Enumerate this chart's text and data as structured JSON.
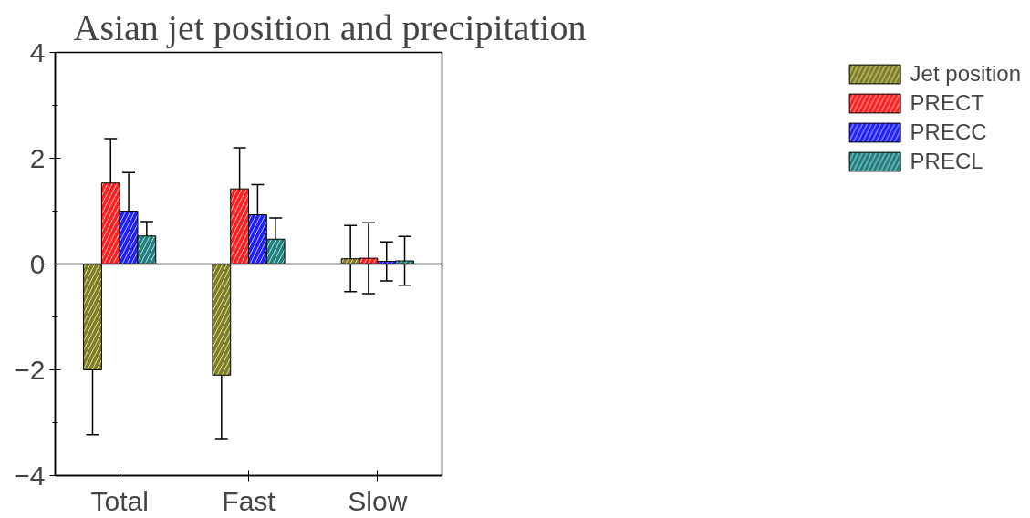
{
  "chart_data": {
    "type": "bar",
    "title": "Asian jet position and precipitation",
    "categories": [
      "Total",
      "Fast",
      "Slow"
    ],
    "series": [
      {
        "name": "Jet position",
        "color": "#808020",
        "values": [
          -2.0,
          -2.1,
          0.1
        ],
        "errors": [
          [
            -3.23,
            -0.8
          ],
          [
            -3.3,
            -0.95
          ],
          [
            -0.52,
            0.73
          ]
        ]
      },
      {
        "name": "PRECT",
        "color": "#ff2020",
        "values": [
          1.53,
          1.42,
          0.11
        ],
        "errors": [
          [
            0.69,
            2.37
          ],
          [
            0.62,
            2.2
          ],
          [
            -0.56,
            0.78
          ]
        ]
      },
      {
        "name": "PRECC",
        "color": "#2020ff",
        "values": [
          1.0,
          0.93,
          0.05
        ],
        "errors": [
          [
            0.27,
            1.73
          ],
          [
            0.37,
            1.5
          ],
          [
            -0.32,
            0.42
          ]
        ]
      },
      {
        "name": "PRECL",
        "color": "#208080",
        "values": [
          0.53,
          0.47,
          0.06
        ],
        "errors": [
          [
            0.26,
            0.8
          ],
          [
            0.07,
            0.87
          ],
          [
            -0.4,
            0.52
          ]
        ]
      }
    ],
    "ylim": [
      -4,
      4
    ],
    "yticks": [
      -4,
      -2,
      0,
      2,
      4
    ],
    "ref_lines": [
      {
        "axis": "y",
        "value": 0,
        "color": "#000000"
      }
    ],
    "grid": false,
    "legend": "right"
  }
}
